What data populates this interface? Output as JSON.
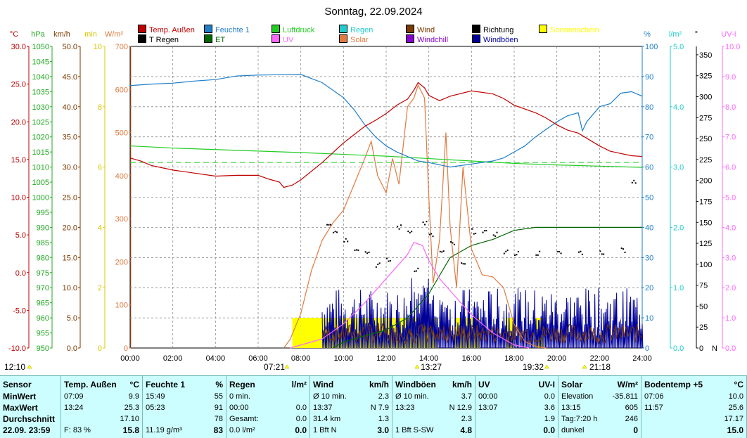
{
  "title": "Sonntag, 22.09.2024",
  "legend": [
    {
      "label": "Temp. Außen",
      "color": "#c00000"
    },
    {
      "label": "Feuchte 1",
      "color": "#1e7ec8"
    },
    {
      "label": "Luftdruck",
      "color": "#22cc22"
    },
    {
      "label": "Regen",
      "color": "#22cccc"
    },
    {
      "label": "Wind",
      "color": "#7a3a00"
    },
    {
      "label": "Richtung",
      "color": "#000000"
    },
    {
      "label": "Sonnenschein",
      "color": "#ffff00"
    },
    {
      "label": "T Regen",
      "color": "#000000"
    },
    {
      "label": "ET",
      "color": "#006600"
    },
    {
      "label": "UV",
      "color": "#ff66ff"
    },
    {
      "label": "Solar",
      "color": "#e07a40"
    },
    {
      "label": "Windchill",
      "color": "#8800cc"
    },
    {
      "label": "Windböen",
      "color": "#000099"
    }
  ],
  "axis_units": {
    "temp": "°C",
    "pressure": "hPa",
    "wind": "km/h",
    "sun_min": "min",
    "solar": "W/m²",
    "humidity": "%",
    "rain": "l/m²",
    "direction": "°",
    "uv": "UV-I"
  },
  "axes": {
    "temp_ticks": [
      "30.0",
      "25.0",
      "20.0",
      "15.0",
      "10.0",
      "5.0",
      "0.0",
      "-5.0",
      "-10.0"
    ],
    "pressure_ticks": [
      "1050",
      "1045",
      "1040",
      "1035",
      "1030",
      "1025",
      "1020",
      "1015",
      "1010",
      "1005",
      "1000",
      "995",
      "990",
      "985",
      "980",
      "975",
      "970",
      "965",
      "960",
      "955",
      "950"
    ],
    "wind_ticks": [
      "50.0",
      "45.0",
      "40.0",
      "35.0",
      "30.0",
      "25.0",
      "20.0",
      "15.0",
      "10.0",
      "5.0",
      "0.0"
    ],
    "sun_ticks": [
      "10",
      "8",
      "6",
      "4",
      "2",
      "0"
    ],
    "solar_ticks": [
      "700",
      "600",
      "500",
      "400",
      "300",
      "200",
      "100",
      "0"
    ],
    "humidity_ticks": [
      "100",
      "90",
      "80",
      "70",
      "60",
      "50",
      "40",
      "30",
      "20",
      "10",
      "0"
    ],
    "rain_ticks": [
      "5.0",
      "4.0",
      "3.0",
      "2.0",
      "1.0",
      "0.0"
    ],
    "direction_ticks": [
      "350",
      "325",
      "300",
      "275",
      "250",
      "225",
      "200",
      "175",
      "150",
      "125",
      "100",
      "75",
      "50",
      "25",
      "0"
    ],
    "direction_n": "N",
    "uv_ticks": [
      "10.0",
      "9.0",
      "8.0",
      "7.0",
      "6.0",
      "5.0",
      "4.0",
      "3.0",
      "2.0",
      "1.0",
      "0.0"
    ],
    "time_ticks": [
      "00:00",
      "02:00",
      "04:00",
      "06:00",
      "08:00",
      "10:00",
      "12:00",
      "14:00",
      "16:00",
      "18:00",
      "20:00",
      "22:00",
      "24:00"
    ]
  },
  "events": {
    "left_time": "12:10",
    "sunrise": "07:21",
    "solar_noon": "13:27",
    "sunset": "19:32",
    "moon": "21:18"
  },
  "chart_data": {
    "type": "line",
    "x_unit": "hour",
    "xlim": [
      0,
      24
    ],
    "series": [
      {
        "name": "Temp. Außen",
        "unit": "°C",
        "ylim": [
          -10,
          30
        ],
        "points": [
          [
            0,
            15.2
          ],
          [
            0.5,
            14.8
          ],
          [
            1,
            14.2
          ],
          [
            2,
            13.6
          ],
          [
            3,
            13.2
          ],
          [
            4,
            12.8
          ],
          [
            5,
            12.9
          ],
          [
            6,
            12.9
          ],
          [
            6.5,
            12.4
          ],
          [
            7,
            12.0
          ],
          [
            7.2,
            11.3
          ],
          [
            7.6,
            11.6
          ],
          [
            8,
            12.3
          ],
          [
            9,
            14.6
          ],
          [
            10,
            17.2
          ],
          [
            10.5,
            18.3
          ],
          [
            11,
            19.4
          ],
          [
            11.5,
            20.2
          ],
          [
            12,
            21.1
          ],
          [
            12.5,
            22.2
          ],
          [
            13,
            23.0
          ],
          [
            13.3,
            24.2
          ],
          [
            13.5,
            25.2
          ],
          [
            13.8,
            24.5
          ],
          [
            14,
            23.5
          ],
          [
            14.5,
            22.8
          ],
          [
            15,
            23.4
          ],
          [
            16,
            24.1
          ],
          [
            17,
            23.7
          ],
          [
            17.5,
            23.1
          ],
          [
            18,
            22.2
          ],
          [
            19,
            21.2
          ],
          [
            19.5,
            20.5
          ],
          [
            20,
            19.6
          ],
          [
            20.5,
            18.9
          ],
          [
            21,
            18.5
          ],
          [
            22,
            16.8
          ],
          [
            22.5,
            16.1
          ],
          [
            23,
            15.8
          ],
          [
            23.5,
            15.5
          ],
          [
            24,
            15.4
          ]
        ]
      },
      {
        "name": "Feuchte 1",
        "unit": "%",
        "ylim": [
          0,
          100
        ],
        "points": [
          [
            0,
            87
          ],
          [
            1,
            87.5
          ],
          [
            2,
            87.8
          ],
          [
            3,
            88.5
          ],
          [
            4,
            89.0
          ],
          [
            5,
            90.2
          ],
          [
            6,
            90.5
          ],
          [
            7,
            90.6
          ],
          [
            8,
            90.7
          ],
          [
            9,
            88
          ],
          [
            10,
            83
          ],
          [
            10.5,
            79
          ],
          [
            11,
            74
          ],
          [
            11.5,
            70
          ],
          [
            12,
            67
          ],
          [
            12.5,
            65
          ],
          [
            13,
            63.5
          ],
          [
            13.5,
            62
          ],
          [
            14,
            61.5
          ],
          [
            15,
            60
          ],
          [
            16,
            61
          ],
          [
            17,
            62
          ],
          [
            17.5,
            63
          ],
          [
            18,
            65
          ],
          [
            18.5,
            67
          ],
          [
            19,
            70
          ],
          [
            19.5,
            72.5
          ],
          [
            20,
            75
          ],
          [
            20.5,
            77
          ],
          [
            21,
            78
          ],
          [
            21.2,
            72
          ],
          [
            21.4,
            75
          ],
          [
            22,
            80
          ],
          [
            22.5,
            81
          ],
          [
            23,
            84.5
          ],
          [
            23.5,
            85
          ],
          [
            24,
            83.5
          ]
        ]
      },
      {
        "name": "Luftdruck",
        "unit": "hPa",
        "ylim": [
          950,
          1050
        ],
        "points": [
          [
            0,
            1017
          ],
          [
            2,
            1016.3
          ],
          [
            4,
            1015.8
          ],
          [
            6,
            1015.3
          ],
          [
            8,
            1014.8
          ],
          [
            10,
            1014.2
          ],
          [
            12,
            1013.6
          ],
          [
            14,
            1012.8
          ],
          [
            16,
            1012.0
          ],
          [
            18,
            1011.2
          ],
          [
            20,
            1010.7
          ],
          [
            22,
            1010.3
          ],
          [
            24,
            1009.9
          ]
        ]
      },
      {
        "name": "Solar",
        "unit": "W/m²",
        "ylim": [
          0,
          700
        ],
        "points": [
          [
            7.2,
            0
          ],
          [
            7.5,
            20
          ],
          [
            8,
            80
          ],
          [
            8.5,
            180
          ],
          [
            9,
            250
          ],
          [
            9.5,
            290
          ],
          [
            10,
            320
          ],
          [
            10.5,
            380
          ],
          [
            11,
            440
          ],
          [
            11.3,
            480
          ],
          [
            11.6,
            400
          ],
          [
            12,
            360
          ],
          [
            12.3,
            440
          ],
          [
            12.6,
            380
          ],
          [
            13,
            560
          ],
          [
            13.3,
            580
          ],
          [
            13.5,
            610
          ],
          [
            13.8,
            580
          ],
          [
            14,
            350
          ],
          [
            14.2,
            150
          ],
          [
            14.5,
            250
          ],
          [
            14.8,
            500
          ],
          [
            15,
            280
          ],
          [
            15.3,
            140
          ],
          [
            15.6,
            420
          ],
          [
            16,
            230
          ],
          [
            16.5,
            170
          ],
          [
            17,
            165
          ],
          [
            17.5,
            140
          ],
          [
            18,
            55
          ],
          [
            18.5,
            15
          ],
          [
            19,
            4
          ],
          [
            19.5,
            0
          ]
        ]
      },
      {
        "name": "UV",
        "unit": "UV-I",
        "ylim": [
          0,
          10
        ],
        "points": [
          [
            7.5,
            0
          ],
          [
            9,
            0.3
          ],
          [
            10,
            0.8
          ],
          [
            11,
            1.5
          ],
          [
            12,
            2.3
          ],
          [
            12.5,
            2.7
          ],
          [
            13,
            3.1
          ],
          [
            13.3,
            3.5
          ],
          [
            13.7,
            3.4
          ],
          [
            14,
            2.9
          ],
          [
            14.5,
            2.3
          ],
          [
            15,
            1.9
          ],
          [
            15.5,
            1.5
          ],
          [
            16,
            1.1
          ],
          [
            17,
            0.5
          ],
          [
            18,
            0.1
          ],
          [
            18.7,
            0
          ]
        ]
      },
      {
        "name": "Richtung",
        "unit": "°",
        "ylim": [
          0,
          360
        ],
        "points": [
          [
            9.2,
            150
          ],
          [
            9.5,
            140
          ],
          [
            10,
            130
          ],
          [
            10.5,
            120
          ],
          [
            11,
            115
          ],
          [
            11.5,
            100
          ],
          [
            12,
            105
          ],
          [
            12.5,
            145
          ],
          [
            13,
            140
          ],
          [
            13.3,
            95
          ],
          [
            13.7,
            150
          ],
          [
            14,
            135
          ],
          [
            14.5,
            115
          ],
          [
            15,
            125
          ],
          [
            15.5,
            100
          ],
          [
            16,
            140
          ],
          [
            16.5,
            138
          ],
          [
            17,
            137
          ],
          [
            17.5,
            115
          ],
          [
            18,
            114
          ],
          [
            19,
            114
          ],
          [
            20,
            114
          ],
          [
            21,
            115
          ],
          [
            22,
            115
          ],
          [
            23,
            118
          ],
          [
            23.5,
            200
          ]
        ]
      },
      {
        "name": "ET",
        "unit": "l/m²",
        "ylim": [
          0,
          5
        ],
        "points": [
          [
            9.5,
            0
          ],
          [
            10,
            0.1
          ],
          [
            12,
            0.3
          ],
          [
            13,
            0.5
          ],
          [
            14,
            0.9
          ],
          [
            15,
            1.5
          ],
          [
            16,
            1.7
          ],
          [
            17,
            1.8
          ],
          [
            18,
            1.95
          ],
          [
            19,
            2.0
          ],
          [
            24,
            2.0
          ]
        ]
      },
      {
        "name": "Wind",
        "unit": "km/h",
        "ylim": [
          0,
          50
        ],
        "note": "noisy 0–4 km/h from 09:00"
      },
      {
        "name": "Windböen",
        "unit": "km/h",
        "ylim": [
          0,
          50
        ],
        "note": "bursts up to ~12 km/h"
      },
      {
        "name": "Sonnenschein",
        "unit": "min",
        "ylim": [
          0,
          10
        ],
        "bars": [
          [
            7.6,
            1
          ],
          [
            8.0,
            1
          ],
          [
            8.4,
            1
          ],
          [
            8.8,
            1
          ],
          [
            9.2,
            1
          ],
          [
            9.6,
            1
          ],
          [
            10.0,
            1
          ],
          [
            10.4,
            1
          ],
          [
            10.8,
            1
          ],
          [
            11.2,
            1
          ],
          [
            11.6,
            1
          ],
          [
            12.0,
            1
          ],
          [
            12.4,
            1
          ],
          [
            12.8,
            1
          ],
          [
            13.2,
            1
          ],
          [
            13.6,
            1
          ],
          [
            14.0,
            1
          ],
          [
            15.2,
            1
          ],
          [
            15.6,
            1
          ],
          [
            16.0,
            1
          ],
          [
            17.6,
            1
          ],
          [
            19.0,
            1
          ]
        ]
      }
    ]
  },
  "table": {
    "row_labels": [
      "Sensor",
      "MinWert",
      "MaxWert",
      "Durchschnitt",
      "22.09.  23:59"
    ],
    "columns": [
      {
        "header": "Temp. Außen",
        "unit": "°C",
        "rows": [
          [
            "07:09",
            "9.9"
          ],
          [
            "13:24",
            "25.3"
          ],
          [
            "",
            "17.10"
          ],
          [
            "F: 83 %",
            "15.8"
          ]
        ]
      },
      {
        "header": "Feuchte 1",
        "unit": "%",
        "rows": [
          [
            "15:49",
            "55"
          ],
          [
            "05:23",
            "91"
          ],
          [
            "",
            "78"
          ],
          [
            "11.19 g/m³",
            "83"
          ]
        ]
      },
      {
        "header": "Regen",
        "unit": "l/m²",
        "rows": [
          [
            "0 min.",
            ""
          ],
          [
            "00:00",
            "0.0"
          ],
          [
            "Gesamt:",
            "0.0"
          ],
          [
            "0.0 l/m²",
            "0.0"
          ]
        ]
      },
      {
        "header": "Wind",
        "unit": "km/h",
        "rows": [
          [
            "Ø 10 min.",
            "2.3"
          ],
          [
            "13:37",
            "N 7.9"
          ],
          [
            "31.4 km",
            "1.3"
          ],
          [
            "1 Bft N",
            "3.0"
          ]
        ]
      },
      {
        "header": "Windböen",
        "unit": "km/h",
        "rows": [
          [
            "Ø 10 min.",
            "3.7"
          ],
          [
            "13:23",
            "N 12.9"
          ],
          [
            "",
            "2.3"
          ],
          [
            "1 Bft S-SW",
            "4.8"
          ]
        ]
      },
      {
        "header": "UV",
        "unit": "UV-I",
        "rows": [
          [
            "00:00",
            "0.0"
          ],
          [
            "13:07",
            "3.6"
          ],
          [
            "",
            "1.9"
          ],
          [
            "",
            "0.0"
          ]
        ]
      },
      {
        "header": "Solar",
        "unit": "W/m²",
        "rows": [
          [
            "Elevation",
            "-35.811"
          ],
          [
            "13:15",
            "605"
          ],
          [
            "Tag:7:20 h",
            "246"
          ],
          [
            "dunkel",
            "0"
          ]
        ]
      },
      {
        "header": "Bodentemp +5",
        "unit": "°C",
        "rows": [
          [
            "07:06",
            "10.0"
          ],
          [
            "11:57",
            "25.6"
          ],
          [
            "",
            "17.17"
          ],
          [
            "",
            "15.0"
          ]
        ]
      }
    ]
  }
}
